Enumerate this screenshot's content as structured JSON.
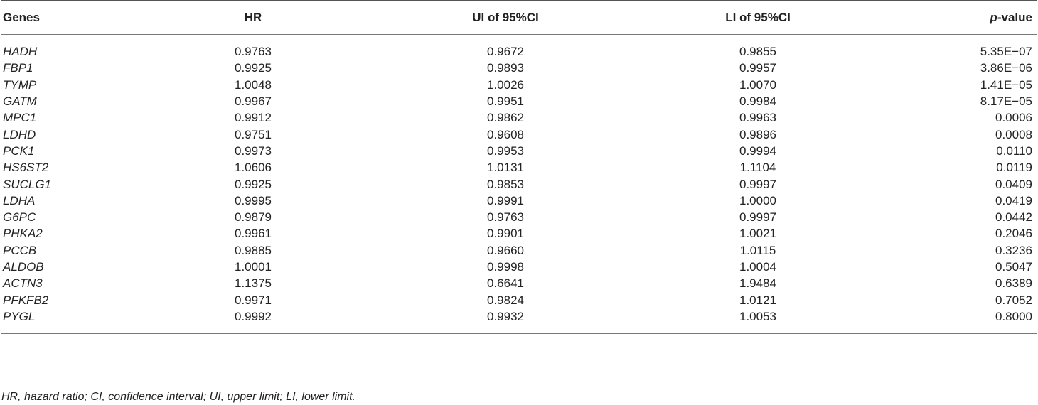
{
  "table": {
    "header": [
      "Genes",
      "HR",
      "UI of 95%CI",
      "LI of 95%CI",
      "p-value"
    ],
    "rows": [
      [
        "HADH",
        "0.9763",
        "0.9672",
        "0.9855",
        "5.35E−07"
      ],
      [
        "FBP1",
        "0.9925",
        "0.9893",
        "0.9957",
        "3.86E−06"
      ],
      [
        "TYMP",
        "1.0048",
        "1.0026",
        "1.0070",
        "1.41E−05"
      ],
      [
        "GATM",
        "0.9967",
        "0.9951",
        "0.9984",
        "8.17E−05"
      ],
      [
        "MPC1",
        "0.9912",
        "0.9862",
        "0.9963",
        "0.0006"
      ],
      [
        "LDHD",
        "0.9751",
        "0.9608",
        "0.9896",
        "0.0008"
      ],
      [
        "PCK1",
        "0.9973",
        "0.9953",
        "0.9994",
        "0.0110"
      ],
      [
        "HS6ST2",
        "1.0606",
        "1.0131",
        "1.1104",
        "0.0119"
      ],
      [
        "SUCLG1",
        "0.9925",
        "0.9853",
        "0.9997",
        "0.0409"
      ],
      [
        "LDHA",
        "0.9995",
        "0.9991",
        "1.0000",
        "0.0419"
      ],
      [
        "G6PC",
        "0.9879",
        "0.9763",
        "0.9997",
        "0.0442"
      ],
      [
        "PHKA2",
        "0.9961",
        "0.9901",
        "1.0021",
        "0.2046"
      ],
      [
        "PCCB",
        "0.9885",
        "0.9660",
        "1.0115",
        "0.3236"
      ],
      [
        "ALDOB",
        "1.0001",
        "0.9998",
        "1.0004",
        "0.5047"
      ],
      [
        "ACTN3",
        "1.1375",
        "0.6641",
        "1.9484",
        "0.6389"
      ],
      [
        "PFKFB2",
        "0.9971",
        "0.9824",
        "1.0121",
        "0.7052"
      ],
      [
        "PYGL",
        "0.9992",
        "0.9932",
        "1.0053",
        "0.8000"
      ]
    ],
    "footnote": "HR, hazard ratio; CI, confidence interval; UI, upper limit; LI, lower limit."
  }
}
